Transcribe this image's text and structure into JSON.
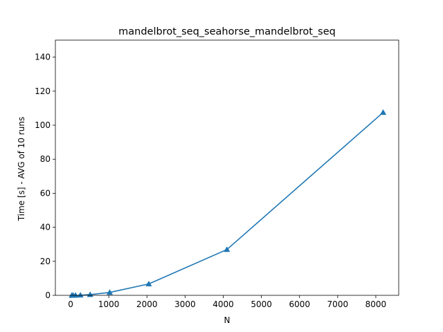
{
  "chart_data": {
    "type": "line",
    "title": "mandelbrot_seq_seahorse_mandelbrot_seq",
    "xlabel": "N",
    "ylabel": "Time [s] - AVG of 10 runs",
    "xlim": [
      -400,
      8600
    ],
    "ylim": [
      0,
      150
    ],
    "xticks": [
      0,
      1000,
      2000,
      3000,
      4000,
      5000,
      6000,
      7000,
      8000
    ],
    "yticks": [
      0,
      20,
      40,
      60,
      80,
      100,
      120,
      140
    ],
    "grid": false,
    "marker": "triangle",
    "color": "#1f77b4",
    "series": [
      {
        "x": [
          32,
          64,
          128,
          256,
          512,
          1024,
          2048,
          4096,
          8192
        ],
        "y": [
          0.002,
          0.007,
          0.027,
          0.105,
          0.42,
          1.7,
          6.7,
          26.9,
          107.5
        ]
      }
    ]
  }
}
